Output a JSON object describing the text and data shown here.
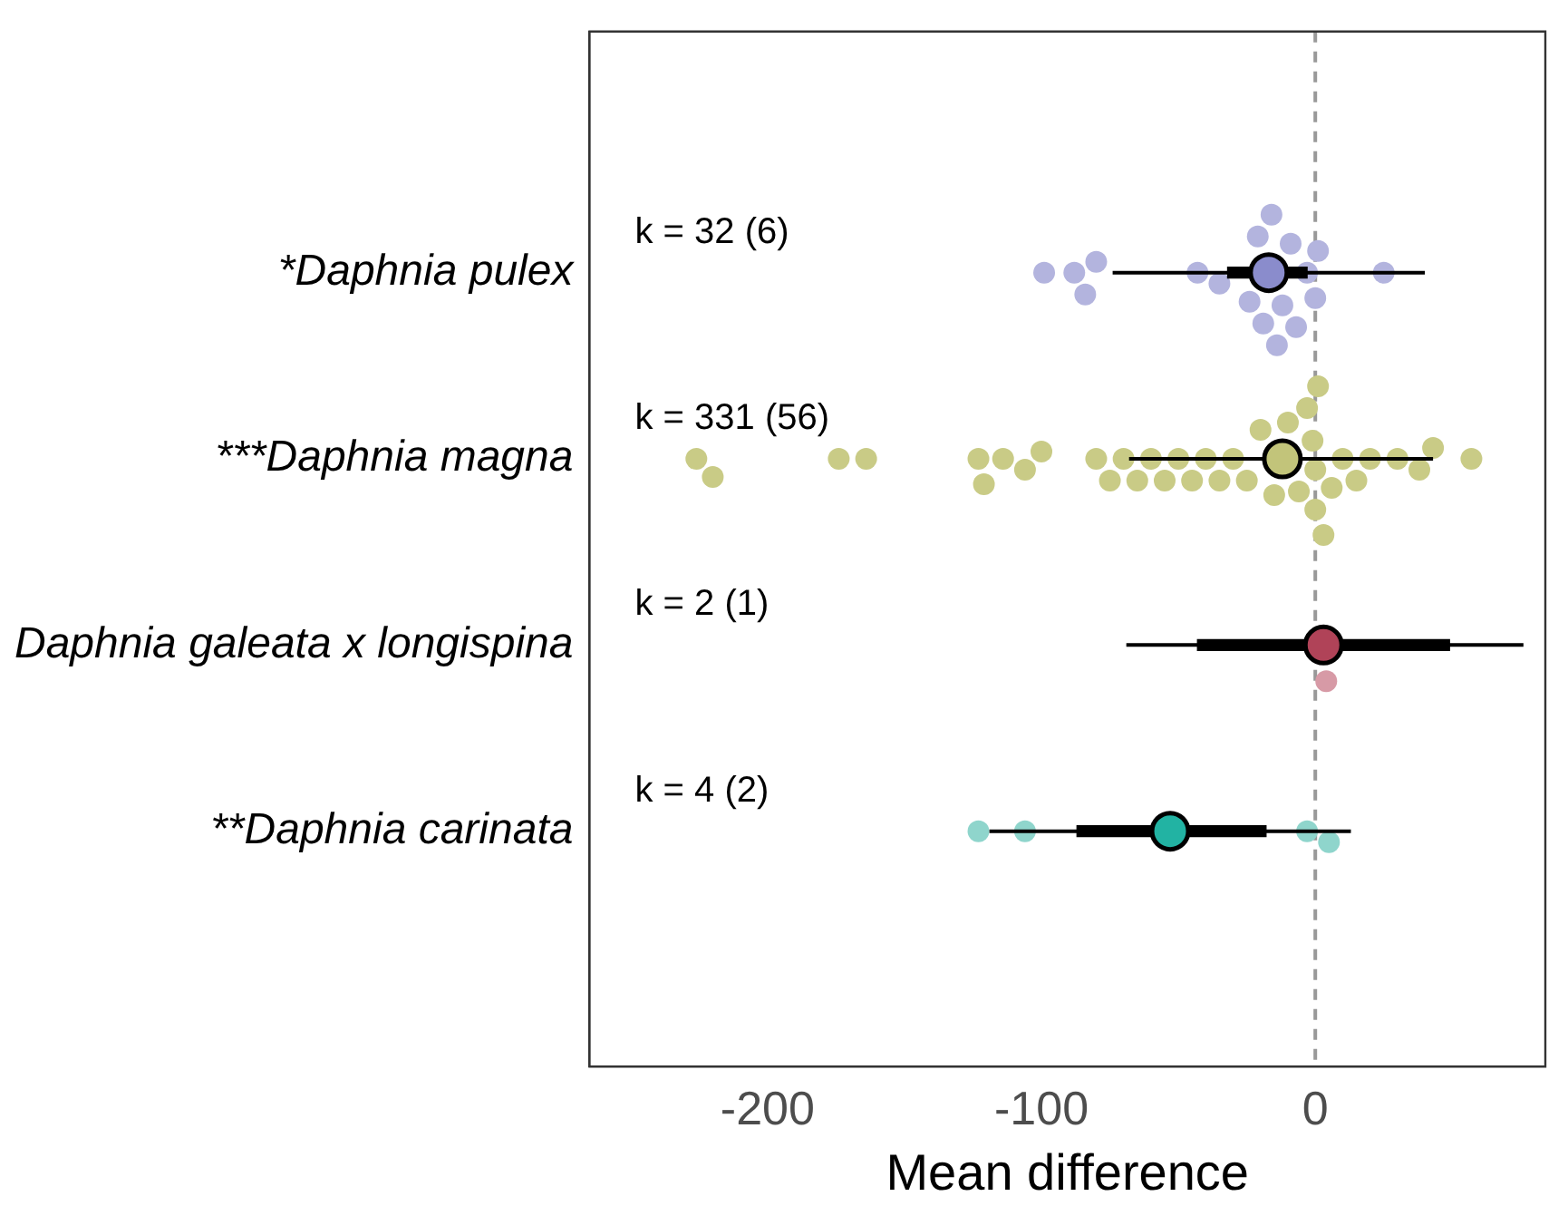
{
  "chart_data": {
    "type": "scatter",
    "orientation": "horizontal",
    "xlabel": "Mean difference",
    "categories": [
      "*Daphnia pulex",
      "***Daphnia magna",
      "Daphnia galeata x longispina",
      "**Daphnia carinata"
    ],
    "xlim": [
      -265,
      84
    ],
    "xticks": [
      -200,
      -100,
      0
    ],
    "grid": false,
    "legend": false,
    "ref_lines": [
      {
        "axis": "x",
        "value": 0,
        "color": "#999999",
        "line_style": "dashed"
      }
    ],
    "annotations": [
      "k = 32 (6)",
      "k = 331 (56)",
      "k = 2 (1)",
      "k = 4 (2)"
    ],
    "series": [
      {
        "color": "#b3b4de",
        "x": [
          "*Daphnia pulex",
          "*Daphnia pulex",
          "*Daphnia pulex",
          "*Daphnia pulex",
          "*Daphnia pulex",
          "*Daphnia pulex",
          "*Daphnia pulex",
          "*Daphnia pulex",
          "*Daphnia pulex",
          "*Daphnia pulex",
          "*Daphnia pulex",
          "*Daphnia pulex",
          "*Daphnia pulex",
          "*Daphnia pulex",
          "*Daphnia pulex",
          "*Daphnia pulex",
          "*Daphnia pulex",
          "*Daphnia pulex"
        ],
        "values": [
          -99,
          -88,
          -84,
          -80,
          -43,
          -35,
          -24,
          -21,
          -19,
          -16,
          -14,
          -12,
          -9,
          -7,
          -3,
          0,
          1,
          25
        ]
      },
      {
        "color": "#c9cb86",
        "x": [
          "***Daphnia magna",
          "***Daphnia magna",
          "***Daphnia magna",
          "***Daphnia magna",
          "***Daphnia magna",
          "***Daphnia magna",
          "***Daphnia magna",
          "***Daphnia magna",
          "***Daphnia magna",
          "***Daphnia magna",
          "***Daphnia magna",
          "***Daphnia magna",
          "***Daphnia magna",
          "***Daphnia magna",
          "***Daphnia magna",
          "***Daphnia magna",
          "***Daphnia magna",
          "***Daphnia magna",
          "***Daphnia magna",
          "***Daphnia magna",
          "***Daphnia magna",
          "***Daphnia magna",
          "***Daphnia magna",
          "***Daphnia magna",
          "***Daphnia magna",
          "***Daphnia magna",
          "***Daphnia magna",
          "***Daphnia magna",
          "***Daphnia magna",
          "***Daphnia magna",
          "***Daphnia magna",
          "***Daphnia magna",
          "***Daphnia magna",
          "***Daphnia magna",
          "***Daphnia magna",
          "***Daphnia magna",
          "***Daphnia magna",
          "***Daphnia magna",
          "***Daphnia magna"
        ],
        "values": [
          -226,
          -220,
          -174,
          -164,
          -123,
          -121,
          -114,
          -106,
          -100,
          -80,
          -75,
          -70,
          -65,
          -60,
          -55,
          -50,
          -45,
          -40,
          -35,
          -30,
          -25,
          -20,
          -15,
          -10,
          -6,
          -3,
          -1,
          0,
          0,
          1,
          3,
          6,
          10,
          15,
          20,
          30,
          38,
          43,
          57
        ]
      },
      {
        "color": "#d79aa6",
        "x": [
          "Daphnia galeata x longispina"
        ],
        "values": [
          4
        ]
      },
      {
        "color": "#8fd5cc",
        "x": [
          "**Daphnia carinata",
          "**Daphnia carinata",
          "**Daphnia carinata",
          "**Daphnia carinata"
        ],
        "values": [
          -123,
          -106,
          -3,
          5
        ]
      },
      {
        "type": "bar",
        "color": "#000000",
        "x": [
          "*Daphnia pulex",
          "Daphnia galeata x longispina",
          "**Daphnia carinata"
        ],
        "base": [
          -32,
          -43,
          -87
        ],
        "values": [
          29,
          92,
          69
        ]
      },
      {
        "marker": "circle",
        "colors": [
          "#8a8ccc",
          "#c2c47a",
          "#b04358",
          "#22b3a3"
        ],
        "x": [
          "*Daphnia pulex",
          "***Daphnia magna",
          "Daphnia galeata x longispina",
          "**Daphnia carinata"
        ],
        "values": [
          -17,
          -12,
          3,
          -53
        ],
        "errors": [
          [
            -74,
            40
          ],
          [
            -68,
            43
          ],
          [
            -69,
            76
          ],
          [
            -119,
            13
          ]
        ]
      }
    ]
  }
}
